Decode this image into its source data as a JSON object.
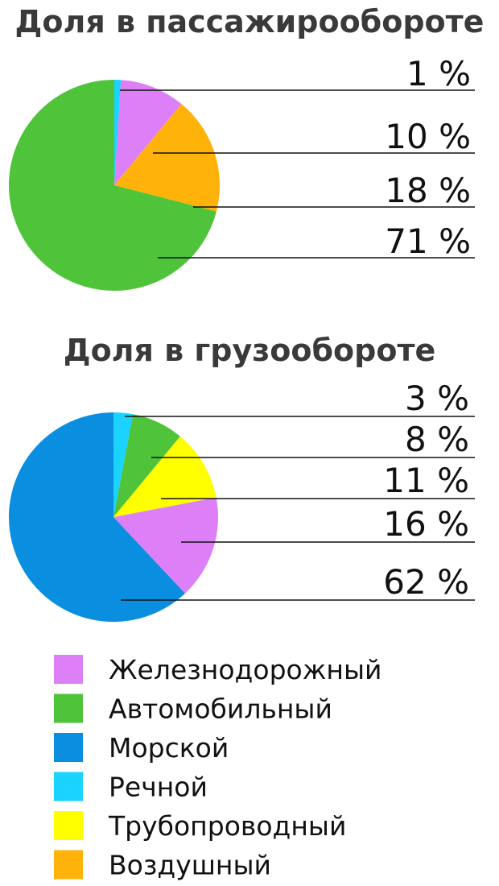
{
  "chart_data": [
    {
      "type": "pie",
      "title": "Доля в пассажирообороте",
      "slices": [
        {
          "label": "Речной",
          "value": 1,
          "label_text": "1 %"
        },
        {
          "label": "Железнодорожный",
          "value": 10,
          "label_text": "10 %"
        },
        {
          "label": "Воздушный",
          "value": 18,
          "label_text": "18 %"
        },
        {
          "label": "Автомобильный",
          "value": 71,
          "label_text": "71 %"
        }
      ]
    },
    {
      "type": "pie",
      "title": "Доля в грузообороте",
      "slices": [
        {
          "label": "Речной",
          "value": 3,
          "label_text": "3 %"
        },
        {
          "label": "Автомобильный",
          "value": 8,
          "label_text": "8 %"
        },
        {
          "label": "Трубопроводный",
          "value": 11,
          "label_text": "11 %"
        },
        {
          "label": "Железнодорожный",
          "value": 16,
          "label_text": "16 %"
        },
        {
          "label": "Морской",
          "value": 62,
          "label_text": "62 %"
        }
      ]
    }
  ],
  "legend": [
    {
      "label": "Железнодорожный",
      "color": "#dd80f8"
    },
    {
      "label": "Автомобильный",
      "color": "#4fc33a"
    },
    {
      "label": "Морской",
      "color": "#0a8fe0"
    },
    {
      "label": "Речной",
      "color": "#1ad3ff"
    },
    {
      "label": "Трубопроводный",
      "color": "#ffff00"
    },
    {
      "label": "Воздушный",
      "color": "#ffb30a"
    }
  ]
}
